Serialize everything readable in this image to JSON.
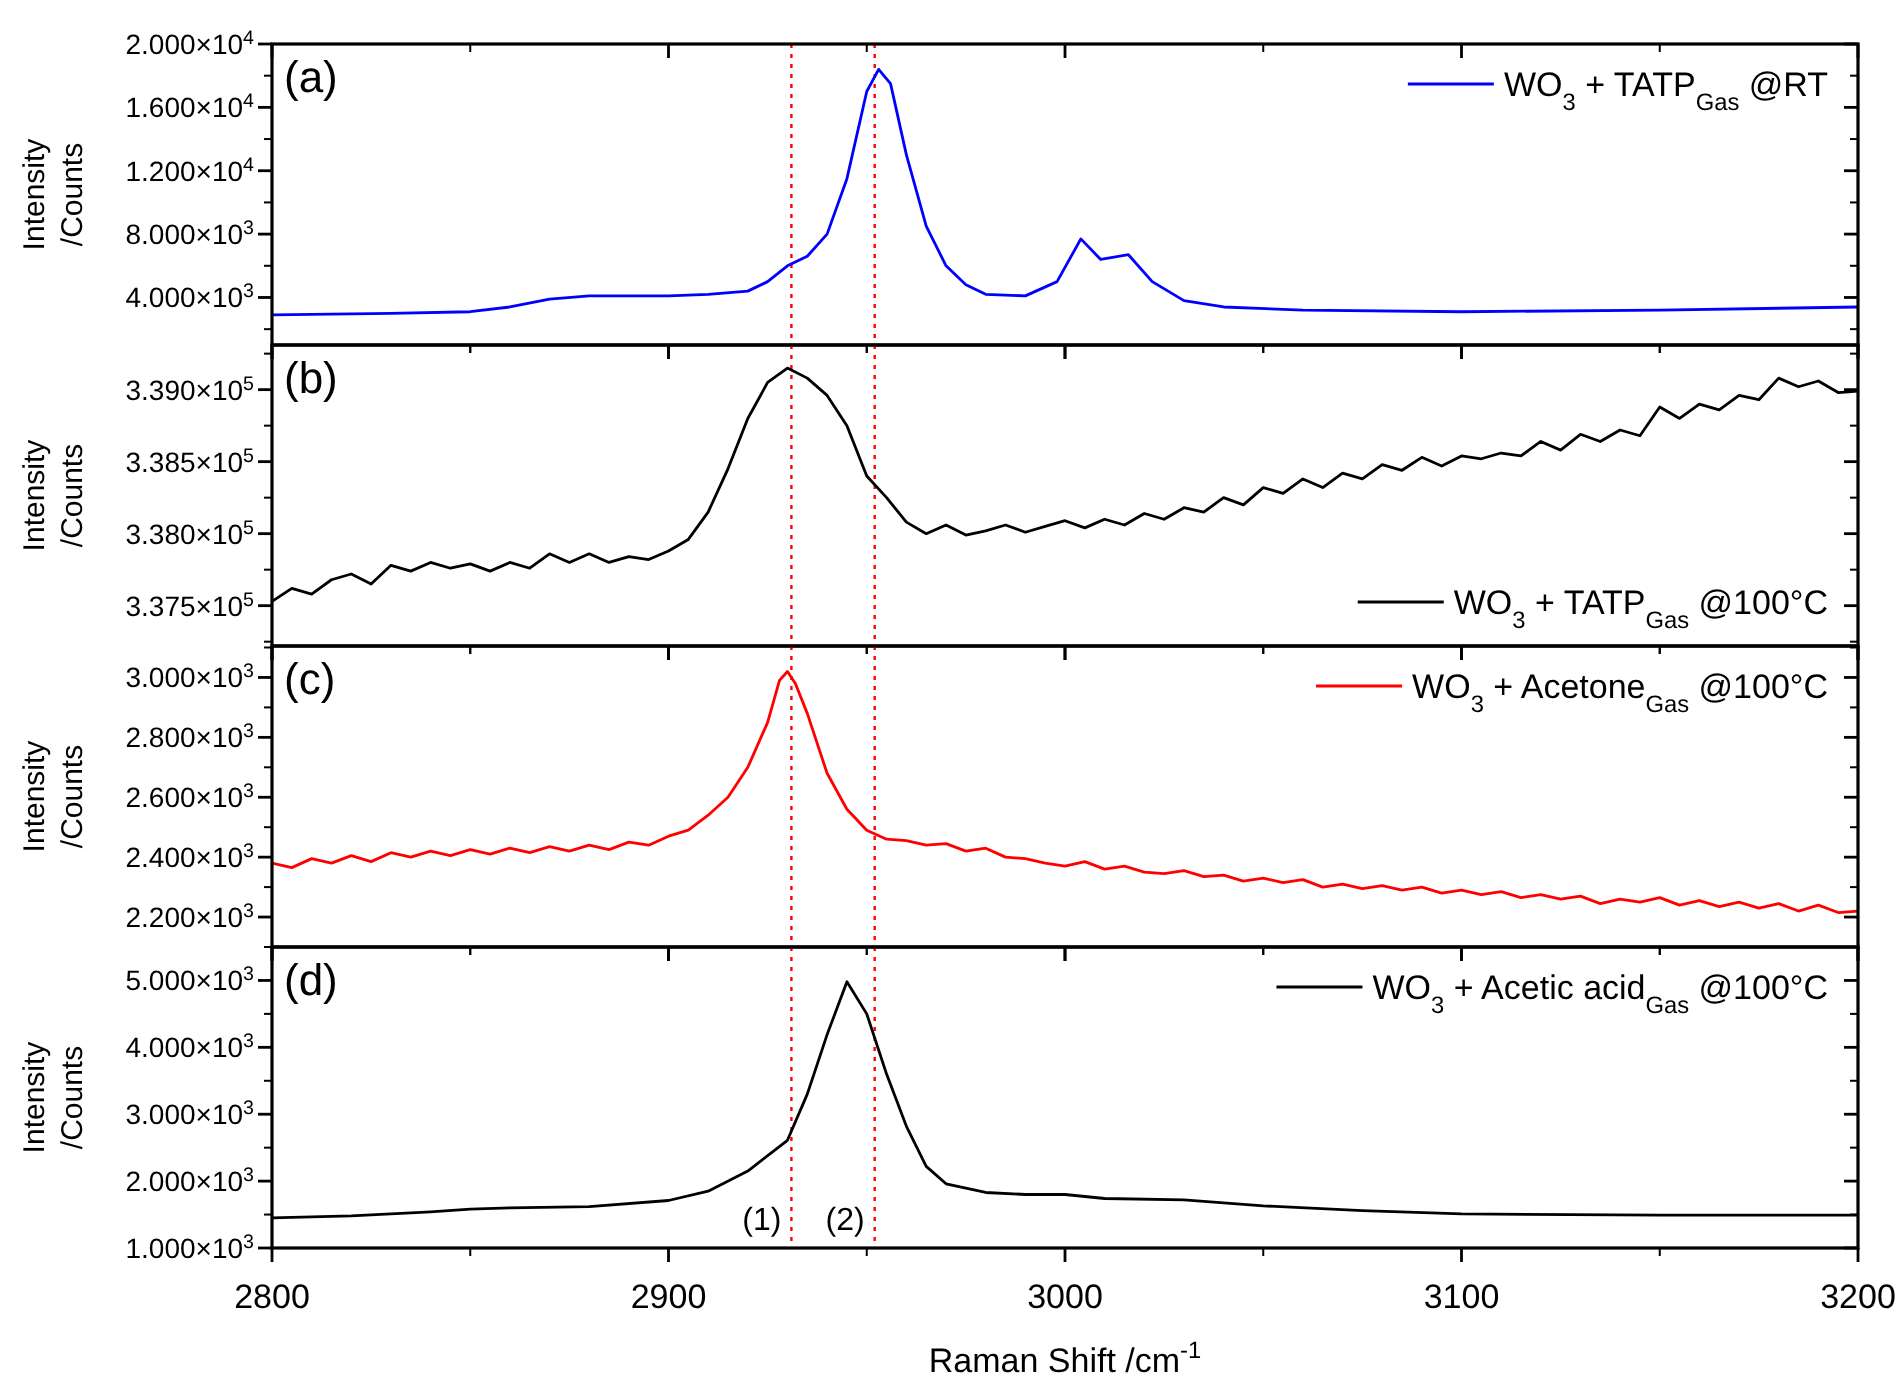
{
  "chart_data": [
    {
      "type": "line",
      "annotations": [
        "(a)"
      ],
      "ylabel": "Intensity /Counts",
      "legend": "top right",
      "tick_labels": "y",
      "xlim": [
        2800,
        3200
      ],
      "xticks": [
        2800,
        2900,
        3000,
        3100,
        3200
      ],
      "ylim": [
        1000,
        20000
      ],
      "yticks": [
        {
          "value": 4000,
          "label": "4.000×10$^{3}$"
        },
        {
          "value": 8000,
          "label": "8.000×10$^{3}$"
        },
        {
          "value": 12000,
          "label": "1.200×10$^{4}$"
        },
        {
          "value": 16000,
          "label": "1.600×10$^{4}$"
        },
        {
          "value": 20000,
          "label": "2.000×10$^{4}$"
        }
      ],
      "ref_lines": [
        {
          "axis": "x",
          "value": 2931,
          "color": "#ff0000",
          "line_style": "dotted"
        },
        {
          "axis": "x",
          "value": 2952,
          "color": "#ff0000",
          "line_style": "dotted"
        }
      ],
      "x": [
        2800,
        2830,
        2850,
        2860,
        2870,
        2880,
        2900,
        2910,
        2920,
        2925,
        2930,
        2935,
        2940,
        2945,
        2950,
        2953,
        2956,
        2960,
        2965,
        2970,
        2975,
        2980,
        2990,
        2998,
        3004,
        3009,
        3016,
        3022,
        3030,
        3040,
        3060,
        3100,
        3150,
        3200
      ],
      "series": [
        {
          "name": "WO$_{3}$ + TATP$_{Gas}$ @RT",
          "color": "#0000ff",
          "values": [
            2900,
            3000,
            3100,
            3400,
            3900,
            4100,
            4100,
            4200,
            4400,
            5000,
            6000,
            6600,
            8000,
            11500,
            17000,
            18400,
            17500,
            13000,
            8500,
            6000,
            4800,
            4200,
            4100,
            5000,
            7700,
            6400,
            6700,
            5000,
            3800,
            3400,
            3200,
            3100,
            3200,
            3400
          ]
        }
      ]
    },
    {
      "type": "line",
      "annotations": [
        "(b)"
      ],
      "ylabel": "Intensity /Counts",
      "legend": "bottom right",
      "tick_labels": "y",
      "xlim": [
        2800,
        3200
      ],
      "xticks": [
        2800,
        2900,
        3000,
        3100,
        3200
      ],
      "ylim": [
        337220,
        339310
      ],
      "yticks": [
        {
          "value": 337500,
          "label": "3.375×10$^{5}$"
        },
        {
          "value": 338000,
          "label": "3.380×10$^{5}$"
        },
        {
          "value": 338500,
          "label": "3.385×10$^{5}$"
        },
        {
          "value": 339000,
          "label": "3.390×10$^{5}$"
        }
      ],
      "ref_lines": [
        {
          "axis": "x",
          "value": 2931,
          "color": "#ff0000",
          "line_style": "dotted"
        },
        {
          "axis": "x",
          "value": 2952,
          "color": "#ff0000",
          "line_style": "dotted"
        }
      ],
      "x": [
        2800,
        2805,
        2810,
        2815,
        2820,
        2825,
        2830,
        2835,
        2840,
        2845,
        2850,
        2855,
        2860,
        2865,
        2870,
        2875,
        2880,
        2885,
        2890,
        2895,
        2900,
        2905,
        2910,
        2915,
        2920,
        2925,
        2930,
        2935,
        2940,
        2945,
        2950,
        2955,
        2960,
        2965,
        2970,
        2975,
        2980,
        2985,
        2990,
        2995,
        3000,
        3005,
        3010,
        3015,
        3020,
        3025,
        3030,
        3035,
        3040,
        3045,
        3050,
        3055,
        3060,
        3065,
        3070,
        3075,
        3080,
        3085,
        3090,
        3095,
        3100,
        3105,
        3110,
        3115,
        3120,
        3125,
        3130,
        3135,
        3140,
        3145,
        3150,
        3155,
        3160,
        3165,
        3170,
        3175,
        3180,
        3185,
        3190,
        3195,
        3200
      ],
      "series": [
        {
          "name": "WO$_{3}$ + TATP$_{Gas}$ @100°C",
          "color": "#000000",
          "values": [
            337530,
            337620,
            337580,
            337680,
            337720,
            337650,
            337780,
            337740,
            337800,
            337760,
            337790,
            337740,
            337800,
            337760,
            337860,
            337800,
            337860,
            337800,
            337840,
            337820,
            337880,
            337960,
            338150,
            338450,
            338800,
            339050,
            339150,
            339080,
            338960,
            338750,
            338400,
            338250,
            338080,
            338000,
            338060,
            337990,
            338020,
            338060,
            338010,
            338050,
            338090,
            338040,
            338100,
            338060,
            338140,
            338100,
            338180,
            338150,
            338250,
            338200,
            338320,
            338280,
            338380,
            338320,
            338420,
            338380,
            338480,
            338440,
            338530,
            338470,
            338540,
            338520,
            338560,
            338540,
            338640,
            338580,
            338690,
            338640,
            338720,
            338680,
            338880,
            338800,
            338900,
            338860,
            338960,
            338930,
            339080,
            339020,
            339060,
            338980,
            338990
          ]
        }
      ]
    },
    {
      "type": "line",
      "annotations": [
        "(c)"
      ],
      "ylabel": "Intensity /Counts",
      "legend": "top right",
      "tick_labels": "y",
      "xlim": [
        2800,
        3200
      ],
      "xticks": [
        2800,
        2900,
        3000,
        3100,
        3200
      ],
      "ylim": [
        2100,
        3105
      ],
      "yticks": [
        {
          "value": 2200,
          "label": "2.200×10$^{3}$"
        },
        {
          "value": 2400,
          "label": "2.400×10$^{3}$"
        },
        {
          "value": 2600,
          "label": "2.600×10$^{3}$"
        },
        {
          "value": 2800,
          "label": "2.800×10$^{3}$"
        },
        {
          "value": 3000,
          "label": "3.000×10$^{3}$"
        }
      ],
      "ref_lines": [
        {
          "axis": "x",
          "value": 2931,
          "color": "#ff0000",
          "line_style": "dotted"
        },
        {
          "axis": "x",
          "value": 2952,
          "color": "#ff0000",
          "line_style": "dotted"
        }
      ],
      "x": [
        2800,
        2805,
        2810,
        2815,
        2820,
        2825,
        2830,
        2835,
        2840,
        2845,
        2850,
        2855,
        2860,
        2865,
        2870,
        2875,
        2880,
        2885,
        2890,
        2895,
        2900,
        2905,
        2910,
        2915,
        2920,
        2925,
        2928,
        2930,
        2932,
        2935,
        2940,
        2945,
        2950,
        2955,
        2960,
        2965,
        2970,
        2975,
        2980,
        2985,
        2990,
        2995,
        3000,
        3005,
        3010,
        3015,
        3020,
        3025,
        3030,
        3035,
        3040,
        3045,
        3050,
        3055,
        3060,
        3065,
        3070,
        3075,
        3080,
        3085,
        3090,
        3095,
        3100,
        3105,
        3110,
        3115,
        3120,
        3125,
        3130,
        3135,
        3140,
        3145,
        3150,
        3155,
        3160,
        3165,
        3170,
        3175,
        3180,
        3185,
        3190,
        3195,
        3200
      ],
      "series": [
        {
          "name": "WO$_{3}$ + Acetone$_{Gas}$ @100°C",
          "color": "#ff0000",
          "values": [
            2380,
            2365,
            2395,
            2380,
            2405,
            2385,
            2415,
            2400,
            2420,
            2405,
            2425,
            2410,
            2430,
            2415,
            2435,
            2420,
            2440,
            2425,
            2450,
            2440,
            2470,
            2490,
            2540,
            2600,
            2700,
            2850,
            2990,
            3020,
            2980,
            2880,
            2680,
            2560,
            2490,
            2460,
            2455,
            2440,
            2445,
            2420,
            2430,
            2400,
            2395,
            2380,
            2370,
            2385,
            2360,
            2370,
            2350,
            2345,
            2355,
            2335,
            2340,
            2320,
            2330,
            2315,
            2325,
            2300,
            2310,
            2295,
            2305,
            2290,
            2300,
            2280,
            2290,
            2275,
            2285,
            2265,
            2275,
            2260,
            2270,
            2245,
            2260,
            2250,
            2265,
            2240,
            2255,
            2235,
            2250,
            2230,
            2245,
            2220,
            2240,
            2215,
            2220
          ]
        }
      ]
    },
    {
      "type": "line",
      "annotations": [
        "(d)",
        {
          "text": "(1)",
          "x": 2931
        },
        {
          "text": "(2)",
          "x": 2952
        }
      ],
      "xlabel": "Raman Shift /cm$^{-1}$",
      "ylabel": "Intensity /Counts",
      "legend": "top right",
      "xlim": [
        2800,
        3200
      ],
      "xticks": [
        2800,
        2900,
        3000,
        3100,
        3200
      ],
      "ylim": [
        1000,
        5500
      ],
      "yticks": [
        {
          "value": 1000,
          "label": "1.000×10$^{3}$"
        },
        {
          "value": 2000,
          "label": "2.000×10$^{3}$"
        },
        {
          "value": 3000,
          "label": "3.000×10$^{3}$"
        },
        {
          "value": 4000,
          "label": "4.000×10$^{3}$"
        },
        {
          "value": 5000,
          "label": "5.000×10$^{3}$"
        }
      ],
      "ref_lines": [
        {
          "axis": "x",
          "value": 2931,
          "color": "#ff0000",
          "line_style": "dotted"
        },
        {
          "axis": "x",
          "value": 2952,
          "color": "#ff0000",
          "line_style": "dotted"
        }
      ],
      "x": [
        2800,
        2820,
        2840,
        2850,
        2860,
        2880,
        2900,
        2910,
        2920,
        2930,
        2935,
        2940,
        2945,
        2950,
        2955,
        2960,
        2965,
        2970,
        2980,
        2990,
        3000,
        3010,
        3030,
        3050,
        3075,
        3100,
        3150,
        3200
      ],
      "series": [
        {
          "name": "WO$_{3}$ + Acetic acid$_{Gas}$ @100°C",
          "color": "#000000",
          "values": [
            1450,
            1480,
            1540,
            1580,
            1600,
            1620,
            1710,
            1850,
            2150,
            2610,
            3300,
            4190,
            4980,
            4500,
            3600,
            2820,
            2220,
            1960,
            1830,
            1800,
            1800,
            1740,
            1720,
            1630,
            1560,
            1510,
            1490,
            1490
          ]
        }
      ]
    }
  ]
}
